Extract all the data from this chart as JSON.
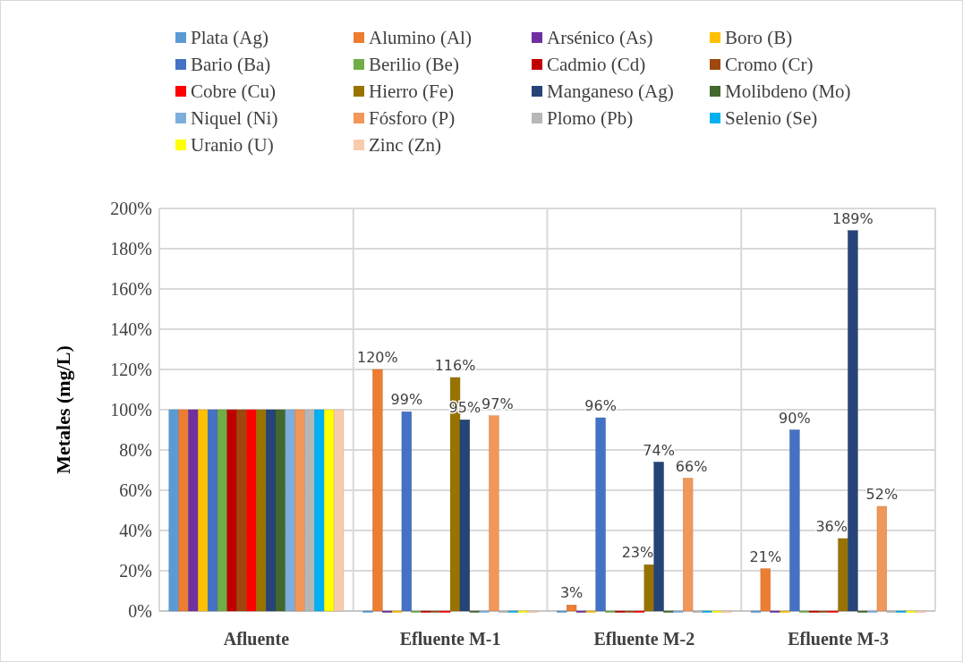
{
  "chart_data": {
    "type": "bar",
    "ylabel": "Metales (mg/L)",
    "categories": [
      "Afluente",
      "Efluente M-1",
      "Efluente M-2",
      "Efluente M-3"
    ],
    "ylim": [
      0,
      200
    ],
    "yticks": [
      {
        "value": 0,
        "label": "0%"
      },
      {
        "value": 20,
        "label": "20%"
      },
      {
        "value": 40,
        "label": "40%"
      },
      {
        "value": 60,
        "label": "60%"
      },
      {
        "value": 80,
        "label": "80%"
      },
      {
        "value": 100,
        "label": "100%"
      },
      {
        "value": 120,
        "label": "120%"
      },
      {
        "value": 140,
        "label": "140%"
      },
      {
        "value": 160,
        "label": "160%"
      },
      {
        "value": 180,
        "label": "180%"
      },
      {
        "value": 200,
        "label": "200%"
      }
    ],
    "grid": true,
    "legend": "top",
    "series": [
      {
        "name": "Plata (Ag)",
        "color": "#5b9bd5",
        "values": [
          100,
          0,
          0,
          0
        ]
      },
      {
        "name": "Alumino (Al)",
        "color": "#ed7d31",
        "values": [
          100,
          120,
          3,
          21
        ],
        "value_labels": [
          null,
          "120%",
          "3%",
          "21%"
        ]
      },
      {
        "name": "Arsénico (As)",
        "color": "#7030a0",
        "values": [
          100,
          0,
          0,
          0
        ]
      },
      {
        "name": "Boro (B)",
        "color": "#ffc000",
        "values": [
          100,
          0,
          0,
          0
        ]
      },
      {
        "name": "Bario (Ba)",
        "color": "#4472c4",
        "values": [
          100,
          99,
          96,
          90
        ],
        "value_labels": [
          null,
          "99%",
          "96%",
          "90%"
        ]
      },
      {
        "name": "Berilio (Be)",
        "color": "#70ad47",
        "values": [
          100,
          0,
          0,
          0
        ]
      },
      {
        "name": "Cadmio (Cd)",
        "color": "#c00000",
        "values": [
          100,
          0,
          0,
          0
        ]
      },
      {
        "name": "Cromo (Cr)",
        "color": "#9e480e",
        "values": [
          100,
          0,
          0,
          0
        ]
      },
      {
        "name": "Cobre (Cu)",
        "color": "#ff0000",
        "values": [
          100,
          0,
          0,
          0
        ]
      },
      {
        "name": "Hierro (Fe)",
        "color": "#997300",
        "values": [
          100,
          116,
          23,
          36
        ],
        "value_labels": [
          null,
          "116%",
          "23%",
          "36%"
        ]
      },
      {
        "name": "Manganeso (Ag)",
        "color": "#264478",
        "values": [
          100,
          95,
          74,
          189
        ],
        "value_labels": [
          null,
          "95%",
          "74%",
          "189%"
        ]
      },
      {
        "name": "Molibdeno (Mo)",
        "color": "#43682b",
        "values": [
          100,
          0,
          0,
          0
        ]
      },
      {
        "name": "Niquel (Ni)",
        "color": "#7cafdd",
        "values": [
          100,
          0,
          0,
          0
        ]
      },
      {
        "name": "Fósforo (P)",
        "color": "#f1975a",
        "values": [
          100,
          97,
          66,
          52
        ],
        "value_labels": [
          null,
          "97%",
          "66%",
          "52%"
        ]
      },
      {
        "name": "Plomo (Pb)",
        "color": "#b7b7b7",
        "values": [
          100,
          0,
          0,
          0
        ]
      },
      {
        "name": "Selenio (Se)",
        "color": "#00b0f0",
        "values": [
          100,
          0,
          0,
          0
        ]
      },
      {
        "name": "Uranio (U)",
        "color": "#ffff00",
        "values": [
          100,
          0,
          0,
          0
        ]
      },
      {
        "name": "Zinc (Zn)",
        "color": "#f8cbad",
        "values": [
          100,
          0,
          0,
          0
        ]
      }
    ]
  }
}
